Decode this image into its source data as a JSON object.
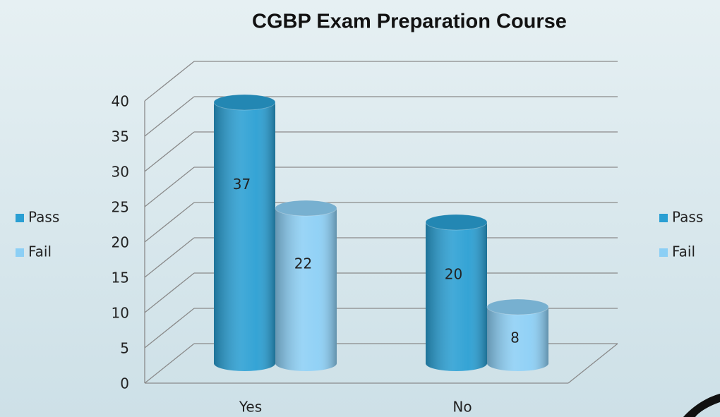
{
  "chart_data": {
    "type": "bar",
    "title": "CGBP Exam Preparation Course",
    "categories": [
      "Yes",
      "No"
    ],
    "series": [
      {
        "name": "Pass",
        "color": "#2a9fd3",
        "values": [
          37,
          20
        ]
      },
      {
        "name": "Fail",
        "color": "#8ccff5",
        "values": [
          22,
          8
        ]
      }
    ],
    "ylim": [
      0,
      40
    ],
    "yticks": [
      0,
      5,
      10,
      15,
      20,
      25,
      30,
      35,
      40
    ],
    "grid": true,
    "legend": [
      "left",
      "right"
    ]
  }
}
